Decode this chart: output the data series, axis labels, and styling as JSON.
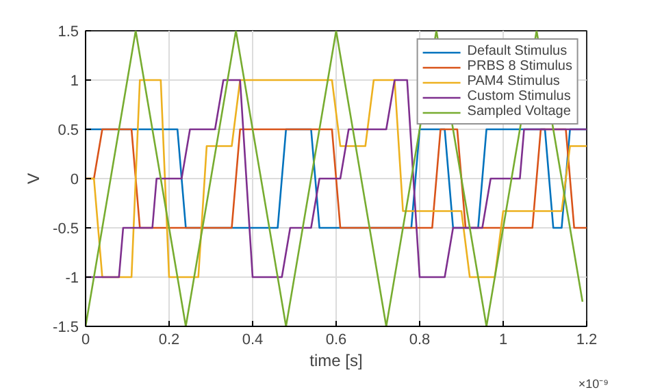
{
  "chart_data": {
    "type": "line",
    "xlabel": "time [s]",
    "ylabel": "V",
    "xlim": [
      0,
      1.2
    ],
    "ylim": [
      -1.5,
      1.5
    ],
    "xticks": [
      0,
      0.2,
      0.4,
      0.6,
      0.8,
      1,
      1.2
    ],
    "yticks": [
      -1.5,
      -1,
      -0.5,
      0,
      0.5,
      1,
      1.5
    ],
    "grid": true,
    "legend": "top right",
    "marker": "none",
    "line_style": "solid",
    "annotations": [
      "×10⁻⁹"
    ],
    "series": [
      {
        "name": "Default Stimulus",
        "color": "#0072bd",
        "x": [
          0,
          0.22,
          0.24,
          0.46,
          0.48,
          0.54,
          0.56,
          0.78,
          0.8,
          0.86,
          0.88,
          0.94,
          0.96,
          1.1,
          1.12,
          1.14,
          1.16,
          1.2
        ],
        "values": [
          0.5,
          0.5,
          -0.5,
          -0.5,
          0.5,
          0.5,
          -0.5,
          -0.5,
          0.5,
          0.5,
          -0.5,
          -0.5,
          0.5,
          0.5,
          -0.5,
          -0.5,
          0.5,
          0.5
        ]
      },
      {
        "name": "PRBS 8 Stimulus",
        "color": "#d95319",
        "x": [
          0,
          0.02,
          0.04,
          0.11,
          0.13,
          0.35,
          0.37,
          0.59,
          0.61,
          0.83,
          0.85,
          0.89,
          0.91,
          1.07,
          1.09,
          1.15,
          1.17,
          1.2
        ],
        "values": [
          0,
          0,
          0.5,
          0.5,
          -0.5,
          -0.5,
          0.5,
          0.5,
          -0.5,
          -0.5,
          0.5,
          0.5,
          -0.5,
          -0.5,
          0.5,
          0.5,
          -0.5,
          -0.5
        ]
      },
      {
        "name": "PAM4 Stimulus",
        "color": "#edb120",
        "x": [
          0,
          0.02,
          0.04,
          0.11,
          0.13,
          0.18,
          0.2,
          0.27,
          0.29,
          0.35,
          0.37,
          0.59,
          0.61,
          0.67,
          0.69,
          0.74,
          0.76,
          0.9,
          0.92,
          0.98,
          1,
          1.14,
          1.16,
          1.2
        ],
        "values": [
          0,
          0,
          -1,
          -1,
          1,
          1,
          -1,
          -1,
          0.33,
          0.33,
          1,
          1,
          0.33,
          0.33,
          1,
          1,
          -0.33,
          -0.33,
          -1,
          -1,
          -0.33,
          -0.33,
          0.33,
          0.33
        ]
      },
      {
        "name": "Custom Stimulus",
        "color": "#7e2f8e",
        "x": [
          0,
          0.08,
          0.09,
          0.16,
          0.17,
          0.23,
          0.25,
          0.31,
          0.33,
          0.37,
          0.4,
          0.47,
          0.49,
          0.54,
          0.56,
          0.61,
          0.63,
          0.72,
          0.74,
          0.77,
          0.8,
          0.86,
          0.88,
          0.95,
          0.97,
          1.04,
          1.05,
          1.2
        ],
        "values": [
          -1,
          -1,
          -0.5,
          -0.5,
          0,
          0,
          0.5,
          0.5,
          1,
          1,
          -1,
          -1,
          -0.5,
          -0.5,
          0,
          0,
          0.5,
          0.5,
          1,
          1,
          -1,
          -1,
          -0.5,
          -0.5,
          0,
          0,
          0.5,
          0.5
        ]
      },
      {
        "name": "Sampled Voltage",
        "color": "#77ac30",
        "x": [
          0,
          0.12,
          0.24,
          0.36,
          0.48,
          0.6,
          0.72,
          0.84,
          0.96,
          1.08,
          1.19
        ],
        "values": [
          -1.5,
          1.5,
          -1.5,
          1.5,
          -1.5,
          1.5,
          -1.5,
          1.5,
          -1.5,
          1.5,
          -1.25
        ]
      }
    ]
  }
}
